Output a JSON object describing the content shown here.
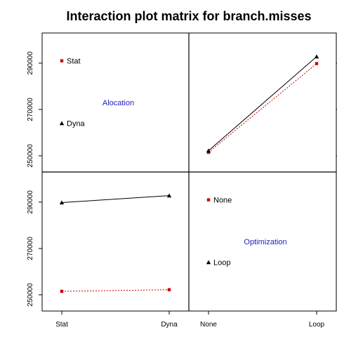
{
  "chart_data": {
    "type": "line",
    "title": "Interaction plot matrix for branch.misses",
    "ylim": [
      243000,
      303000
    ],
    "y_ticks": [
      250000,
      270000,
      290000
    ],
    "factors": [
      {
        "name": "Alocation",
        "levels": [
          "Stat",
          "Dyna"
        ]
      },
      {
        "name": "Optimization",
        "levels": [
          "None",
          "Loop"
        ]
      }
    ],
    "panels": [
      {
        "position": "top-right",
        "x_factor": "Optimization",
        "x_levels": [
          "None",
          "Loop"
        ],
        "series": [
          {
            "trace_level": "Stat",
            "color": "#cc0000",
            "marker": "square",
            "line": "dotted",
            "values": [
              251500,
              289800
            ]
          },
          {
            "trace_level": "Dyna",
            "color": "#000000",
            "marker": "triangle",
            "line": "solid",
            "values": [
              252200,
              292800
            ]
          }
        ]
      },
      {
        "position": "bottom-left",
        "x_factor": "Alocation",
        "x_levels": [
          "Stat",
          "Dyna"
        ],
        "series": [
          {
            "trace_level": "None",
            "color": "#cc0000",
            "marker": "square",
            "line": "dotted",
            "values": [
              251500,
              252200
            ]
          },
          {
            "trace_level": "Loop",
            "color": "#000000",
            "marker": "triangle",
            "line": "solid",
            "values": [
              289800,
              292800
            ]
          }
        ]
      }
    ],
    "legends": [
      {
        "position": "top-left",
        "label": "Alocation",
        "entries": [
          {
            "text": "Stat",
            "color": "#cc0000",
            "marker": "square",
            "y": 291000
          },
          {
            "text": "Dyna",
            "color": "#000000",
            "marker": "triangle",
            "y": 264000
          }
        ]
      },
      {
        "position": "bottom-right",
        "label": "Optimization",
        "entries": [
          {
            "text": "None",
            "color": "#cc0000",
            "marker": "square",
            "y": 291000
          },
          {
            "text": "Loop",
            "color": "#000000",
            "marker": "triangle",
            "y": 264000
          }
        ]
      }
    ]
  }
}
